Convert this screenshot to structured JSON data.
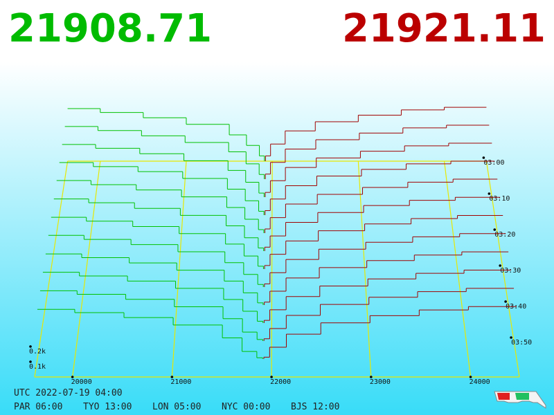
{
  "chart_data": {
    "type": "depth3d",
    "bid_price": "21908.71",
    "ask_price": "21921.11",
    "bid_color": "#00c000",
    "ask_color": "#a00000",
    "floor_color": "#e8e800",
    "xlim": [
      19620,
      24490
    ],
    "xticks": [
      20000,
      21000,
      22000,
      23000,
      24000
    ],
    "depth_ticks": [
      {
        "value": 100,
        "label": "0.1k"
      },
      {
        "value": 200,
        "label": "0.2k"
      }
    ],
    "time_lim": [
      0,
      60
    ],
    "time_ticks": [
      {
        "value": 0,
        "label": "03:00"
      },
      {
        "value": 10,
        "label": "03:10"
      },
      {
        "value": 20,
        "label": "03:20"
      },
      {
        "value": 30,
        "label": "03:30"
      },
      {
        "value": 40,
        "label": "03:40"
      },
      {
        "value": 50,
        "label": "03:50"
      }
    ],
    "bid_edges": [
      19620,
      20000,
      20500,
      21000,
      21500,
      21700,
      21850,
      21908.71
    ],
    "ask_edges": [
      21921.11,
      21980,
      22150,
      22500,
      23000,
      23500,
      24000,
      24490
    ],
    "snapshots": [
      {
        "minute": 0,
        "bids": [
          400,
          370,
          330,
          280,
          200,
          120,
          40
        ],
        "asks": [
          40,
          130,
          230,
          300,
          350,
          390,
          410
        ]
      },
      {
        "minute": 5,
        "bids": [
          395,
          365,
          325,
          275,
          205,
          115,
          35
        ],
        "asks": [
          38,
          126,
          226,
          296,
          346,
          385,
          405
        ]
      },
      {
        "minute": 10,
        "bids": [
          390,
          362,
          322,
          270,
          198,
          110,
          30
        ],
        "asks": [
          35,
          122,
          220,
          290,
          340,
          380,
          400
        ]
      },
      {
        "minute": 15,
        "bids": [
          385,
          355,
          318,
          268,
          190,
          105,
          28
        ],
        "asks": [
          33,
          118,
          215,
          286,
          335,
          375,
          395
        ]
      },
      {
        "minute": 20,
        "bids": [
          380,
          350,
          312,
          262,
          185,
          100,
          25
        ],
        "asks": [
          30,
          112,
          210,
          280,
          330,
          368,
          390
        ]
      },
      {
        "minute": 25,
        "bids": [
          372,
          345,
          305,
          255,
          180,
          95,
          22
        ],
        "asks": [
          28,
          108,
          205,
          275,
          325,
          362,
          384
        ]
      },
      {
        "minute": 30,
        "bids": [
          365,
          338,
          300,
          250,
          176,
          92,
          20
        ],
        "asks": [
          25,
          104,
          198,
          270,
          318,
          356,
          378
        ]
      },
      {
        "minute": 35,
        "bids": [
          360,
          332,
          296,
          246,
          170,
          88,
          18
        ],
        "asks": [
          22,
          100,
          192,
          264,
          312,
          350,
          372
        ]
      },
      {
        "minute": 40,
        "bids": [
          352,
          326,
          290,
          240,
          165,
          84,
          15
        ],
        "asks": [
          20,
          95,
          186,
          258,
          306,
          344,
          366
        ]
      },
      {
        "minute": 45,
        "bids": [
          345,
          320,
          285,
          236,
          160,
          80,
          12
        ],
        "asks": [
          18,
          90,
          180,
          252,
          300,
          338,
          360
        ]
      },
      {
        "minute": 50,
        "bids": [
          338,
          314,
          280,
          230,
          150,
          60,
          10
        ],
        "asks": [
          15,
          84,
          172,
          246,
          294,
          332,
          354
        ]
      },
      {
        "minute": 55,
        "bids": [
          330,
          308,
          275,
          226,
          140,
          50,
          8
        ],
        "asks": [
          12,
          78,
          165,
          240,
          288,
          326,
          348
        ]
      }
    ],
    "utc_label": "UTC 2022-07-19 04:00",
    "city_times": [
      "PAR 06:00",
      "TYO 13:00",
      "LON 05:00",
      "NYC 00:00",
      "BJS 12:00"
    ]
  }
}
